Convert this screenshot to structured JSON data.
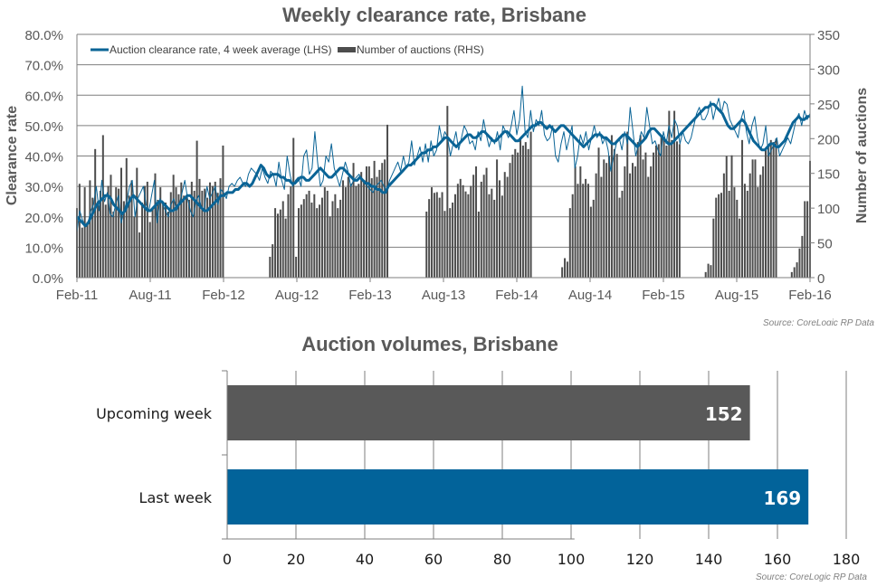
{
  "colors": {
    "line": "#0a6496",
    "bars": "#4d4d4d",
    "grid": "#7f7f7f",
    "upcoming_bar": "#595959",
    "last_week_bar": "#02639a"
  },
  "chart_data": [
    {
      "type": "bar+line",
      "title": "Weekly clearance rate, Brisbane",
      "ylabel": "Clearance rate",
      "y2label": "Number of auctions",
      "ylim": [
        0,
        80
      ],
      "y2lim": [
        0,
        350
      ],
      "yticks": [
        "0.0%",
        "10.0%",
        "20.0%",
        "30.0%",
        "40.0%",
        "50.0%",
        "60.0%",
        "70.0%",
        "80.0%"
      ],
      "y2ticks": [
        "0",
        "50",
        "100",
        "150",
        "200",
        "250",
        "300",
        "350"
      ],
      "xticks": [
        "Feb-11",
        "Aug-11",
        "Feb-12",
        "Aug-12",
        "Feb-13",
        "Aug-13",
        "Feb-14",
        "Aug-14",
        "Feb-15",
        "Aug-15",
        "Feb-16"
      ],
      "legend": {
        "position": "top-left",
        "entries": [
          {
            "label": "Auction clearance rate, 4 week average (LHS)",
            "kind": "line"
          },
          {
            "label": "Number of auctions (RHS)",
            "kind": "bar"
          }
        ]
      },
      "source": "Source: CoreLogic  RP Data",
      "x_start": "Feb-11",
      "x_step": "week",
      "series": [
        {
          "name": "Number of auctions (RHS)",
          "type": "bar",
          "values": [
            100,
            135,
            72,
            130,
            80,
            140,
            115,
            185,
            110,
            125,
            205,
            105,
            132,
            148,
            95,
            130,
            128,
            158,
            110,
            172,
            118,
            140,
            88,
            158,
            65,
            108,
            132,
            138,
            80,
            100,
            150,
            112,
            130,
            105,
            108,
            95,
            123,
            148,
            130,
            120,
            137,
            118,
            118,
            112,
            138,
            125,
            197,
            142,
            125,
            128,
            115,
            137,
            132,
            138,
            122,
            143,
            190,
            null,
            null,
            null,
            null,
            null,
            null,
            null,
            null,
            null,
            null,
            null,
            null,
            null,
            null,
            null,
            null,
            null,
            30,
            48,
            100,
            92,
            98,
            110,
            85,
            120,
            131,
            201,
            30,
            100,
            105,
            113,
            120,
            125,
            108,
            120,
            100,
            105,
            115,
            130,
            125,
            88,
            110,
            120,
            100,
            112,
            140,
            130,
            145,
            135,
            165,
            132,
            135,
            152,
            140,
            160,
            160,
            143,
            168,
            145,
            155,
            165,
            170,
            220,
            null,
            null,
            null,
            null,
            null,
            null,
            null,
            null,
            null,
            null,
            null,
            null,
            null,
            null,
            95,
            113,
            130,
            122,
            123,
            115,
            123,
            96,
            247,
            100,
            108,
            120,
            135,
            142,
            133,
            124,
            120,
            132,
            148,
            160,
            95,
            138,
            148,
            158,
            120,
            128,
            112,
            170,
            140,
            118,
            152,
            145,
            165,
            177,
            185,
            180,
            200,
            190,
            195,
            185,
            210,
            null,
            null,
            null,
            null,
            null,
            null,
            null,
            null,
            null,
            null,
            null,
            15,
            28,
            23,
            100,
            120,
            160,
            135,
            160,
            135,
            142,
            135,
            102,
            112,
            150,
            187,
            145,
            170,
            165,
            175,
            205,
            185,
            178,
            115,
            125,
            160,
            210,
            150,
            165,
            160,
            195,
            205,
            170,
            180,
            145,
            160,
            180,
            190,
            192,
            205,
            200,
            190,
            240,
            198,
            240,
            196,
            192,
            null,
            null,
            null,
            null,
            null,
            null,
            null,
            null,
            null,
            8,
            20,
            18,
            85,
            115,
            120,
            122,
            150,
            175,
            125,
            176,
            130,
            112,
            85,
            198,
            135,
            125,
            150,
            170,
            170,
            130,
            148,
            160,
            185,
            192,
            198,
            195,
            200,
            null,
            null,
            null,
            null,
            null,
            8,
            15,
            22,
            42,
            60,
            110,
            110,
            168
          ]
        },
        {
          "name": "Weekly clearance rate (thin)",
          "type": "line",
          "values": [
            15,
            22,
            19,
            17,
            18,
            22,
            24,
            30,
            22,
            32,
            25,
            28,
            21,
            20,
            24,
            27,
            18,
            22,
            25,
            30,
            32,
            20,
            26,
            28,
            30,
            24,
            22,
            27,
            32,
            18,
            26,
            24,
            22,
            20,
            24,
            26,
            22,
            24,
            28,
            32,
            26,
            22,
            20,
            25,
            27,
            23,
            22,
            30,
            26,
            28,
            30,
            24,
            29,
            28,
            26,
            30,
            31,
            30,
            32,
            33,
            31,
            30,
            34,
            36,
            35,
            34,
            32,
            36,
            33,
            31,
            35,
            34,
            30,
            38,
            32,
            29,
            40,
            34,
            30,
            32,
            33,
            30,
            40,
            42,
            34,
            36,
            48,
            38,
            30,
            32,
            40,
            38,
            44,
            36,
            33,
            30,
            34,
            38,
            35,
            30,
            32,
            33,
            34,
            32,
            32,
            30,
            29,
            28,
            30,
            31,
            32,
            30,
            28,
            32,
            34,
            36,
            38,
            35,
            40,
            36,
            38,
            45,
            37,
            40,
            43,
            38,
            44,
            38,
            45,
            40,
            42,
            50,
            45,
            48,
            46,
            40,
            44,
            48,
            42,
            46,
            50,
            48,
            44,
            45,
            42,
            48,
            45,
            52,
            47,
            43,
            46,
            44,
            48,
            42,
            50,
            48,
            46,
            50,
            55,
            47,
            52,
            63,
            48,
            46,
            55,
            48,
            52,
            50,
            55,
            47,
            45,
            46,
            50,
            40,
            38,
            44,
            48,
            42,
            46,
            50,
            36,
            40,
            47,
            44,
            48,
            42,
            46,
            50,
            46,
            48,
            44,
            46,
            42,
            35,
            40,
            44,
            46,
            42,
            48,
            44,
            56,
            48,
            40,
            44,
            48,
            46,
            56,
            50,
            44,
            45,
            42,
            40,
            48,
            44,
            50,
            46,
            52,
            50,
            44,
            48,
            45,
            44,
            46,
            50,
            54,
            56,
            52,
            52,
            54,
            58,
            52,
            56,
            59,
            54,
            58,
            57,
            52,
            50,
            48,
            46,
            52,
            55,
            48,
            44,
            50,
            53,
            46,
            42,
            44,
            50,
            40,
            42,
            44,
            46,
            40,
            42,
            44,
            46,
            44,
            48,
            52,
            54,
            50,
            55,
            52,
            54
          ]
        },
        {
          "name": "Auction clearance rate, 4 week average (LHS)",
          "type": "line",
          "values": [
            20,
            19,
            18,
            17,
            18,
            20,
            22,
            24,
            25,
            26,
            27,
            27,
            26,
            24,
            23,
            22,
            21,
            22,
            24,
            26,
            27,
            26,
            25,
            24,
            23,
            22,
            22,
            23,
            24,
            25,
            25,
            24,
            23,
            22,
            22,
            23,
            24,
            25,
            26,
            27,
            27,
            26,
            25,
            24,
            23,
            22,
            22,
            23,
            24,
            25,
            26,
            27,
            27,
            28,
            28,
            28,
            29,
            29,
            30,
            31,
            31,
            30,
            31,
            33,
            35,
            37,
            36,
            34,
            33,
            34,
            34,
            34,
            33,
            33,
            32,
            32,
            31,
            31,
            32,
            33,
            33,
            32,
            32,
            33,
            34,
            35,
            36,
            35,
            34,
            33,
            33,
            34,
            35,
            36,
            36,
            35,
            34,
            33,
            32,
            32,
            33,
            32,
            31,
            31,
            30,
            30,
            29,
            29,
            28,
            28,
            30,
            31,
            32,
            33,
            34,
            35,
            36,
            37,
            37,
            38,
            39,
            40,
            41,
            41,
            42,
            42,
            43,
            43,
            44,
            45,
            46,
            46,
            45,
            44,
            43,
            44,
            45,
            46,
            47,
            47,
            46,
            46,
            47,
            48,
            48,
            47,
            46,
            45,
            45,
            46,
            47,
            48,
            48,
            47,
            46,
            45,
            45,
            46,
            47,
            48,
            49,
            50,
            50,
            51,
            51,
            50,
            49,
            50,
            49,
            48,
            49,
            50,
            50,
            49,
            48,
            47,
            46,
            45,
            44,
            43,
            44,
            45,
            46,
            47,
            47,
            47,
            46,
            46,
            45,
            44,
            44,
            45,
            46,
            47,
            47,
            46,
            45,
            44,
            43,
            44,
            45,
            46,
            48,
            49,
            49,
            48,
            47,
            46,
            45,
            44,
            44,
            45,
            46,
            47,
            48,
            49,
            50,
            51,
            52,
            53,
            54,
            55,
            56,
            56,
            57,
            57,
            56,
            55,
            54,
            52,
            50,
            49,
            49,
            50,
            51,
            52,
            51,
            49,
            47,
            45,
            44,
            43,
            42,
            42,
            43,
            44,
            44,
            43,
            43,
            44,
            45,
            47,
            49,
            51,
            52,
            53,
            52,
            52,
            53,
            53
          ]
        }
      ]
    },
    {
      "type": "bar",
      "orientation": "horizontal",
      "title": "Auction volumes, Brisbane",
      "categories": [
        "Upcoming week",
        "Last week"
      ],
      "values": [
        152,
        169
      ],
      "xlim": [
        0,
        180
      ],
      "xticks": [
        "0",
        "20",
        "40",
        "60",
        "80",
        "100",
        "120",
        "140",
        "160",
        "180"
      ],
      "source": "Source: CoreLogic  RP Data"
    }
  ]
}
